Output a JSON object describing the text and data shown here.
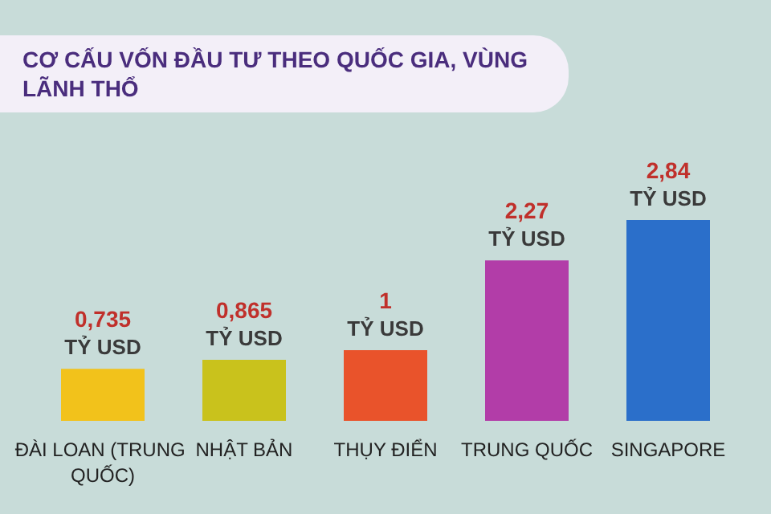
{
  "chart_data": {
    "type": "bar",
    "title": "CƠ CẤU VỐN ĐẦU TƯ THEO QUỐC GIA, VÙNG LÃNH THỔ",
    "categories": [
      "ĐÀI LOAN (TRUNG QUỐC)",
      "NHẬT BẢN",
      "THỤY ĐIỂN",
      "TRUNG QUỐC",
      "SINGAPORE"
    ],
    "values": [
      0.735,
      0.865,
      1,
      2.27,
      2.84
    ],
    "colors": [
      "#f2c21b",
      "#c9c21c",
      "#e9532b",
      "#b23da8",
      "#2b6fca"
    ],
    "value_labels": [
      "0,735\nTỶ USD",
      "0,865\nTỶ USD",
      "1\nTỶ USD",
      "2,27\nTỶ USD",
      "2,84\nTỶ USD"
    ],
    "grid": false
  }
}
